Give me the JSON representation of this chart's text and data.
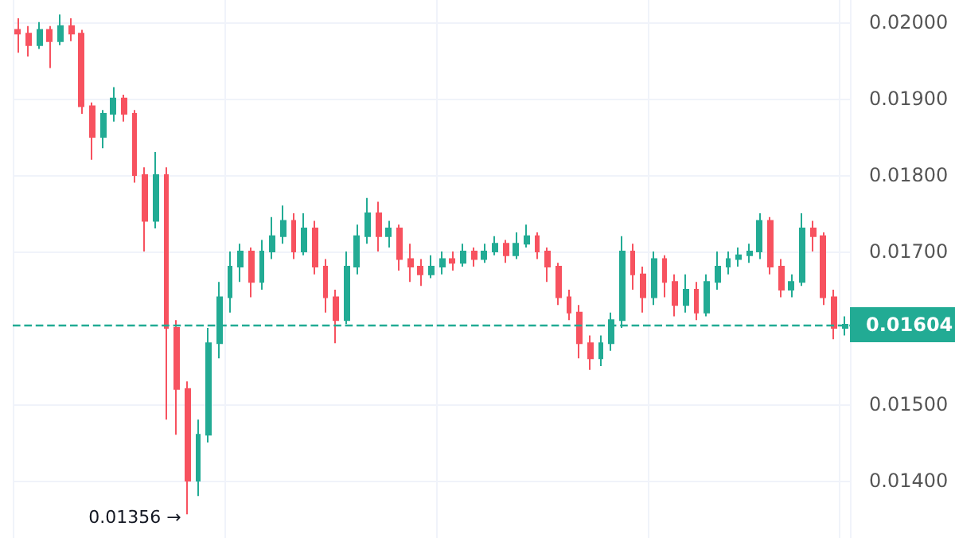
{
  "chart_data": {
    "type": "candlestick",
    "categories": [
      null,
      null,
      null,
      null,
      null,
      null,
      null,
      null,
      null,
      null,
      null,
      null,
      null,
      null,
      null,
      null,
      null,
      null,
      null,
      null,
      null,
      null,
      null,
      null,
      null,
      null,
      null,
      null,
      null,
      null,
      null,
      null,
      null,
      null,
      null,
      null,
      null,
      null,
      null,
      null,
      null,
      null,
      null,
      null,
      null,
      null,
      null,
      null,
      null,
      null,
      null,
      null,
      null,
      null,
      null,
      null,
      null,
      null,
      null,
      null,
      null,
      null,
      null,
      null,
      null,
      null,
      null,
      null,
      null,
      null,
      null,
      null,
      null,
      null,
      null,
      null,
      null,
      null,
      null
    ],
    "colors": [
      "#f7525f",
      "#f7525f",
      "#22ab94",
      "#f7525f",
      "#22ab94",
      "#f7525f",
      "#f7525f",
      "#f7525f",
      "#22ab94",
      "#22ab94",
      "#f7525f",
      "#f7525f",
      "#f7525f",
      "#22ab94",
      "#f7525f",
      "#f7525f",
      "#f7525f",
      "#22ab94",
      "#22ab94",
      "#22ab94",
      "#22ab94",
      "#22ab94",
      "#f7525f",
      "#22ab94",
      "#22ab94",
      "#22ab94",
      "#f7525f",
      "#22ab94",
      "#f7525f",
      "#f7525f",
      "#f7525f",
      "#22ab94",
      "#22ab94",
      "#22ab94",
      "#f7525f",
      "#22ab94",
      "#f7525f",
      "#f7525f",
      "#f7525f",
      "#22ab94",
      "#22ab94",
      "#f7525f",
      "#22ab94",
      "#f7525f",
      "#22ab94",
      "#22ab94",
      "#f7525f",
      "#22ab94",
      "#22ab94",
      "#f7525f",
      "#f7525f",
      "#f7525f",
      "#f7525f",
      "#f7525f",
      "#f7525f",
      "#22ab94",
      "#22ab94",
      "#22ab94",
      "#f7525f",
      "#f7525f",
      "#22ab94",
      "#f7525f",
      "#f7525f",
      "#22ab94",
      "#f7525f",
      "#22ab94",
      "#22ab94",
      "#22ab94",
      "#22ab94",
      "#22ab94",
      "#22ab94",
      "#f7525f",
      "#f7525f",
      "#22ab94",
      "#22ab94",
      "#f7525f",
      "#f7525f",
      "#f7525f",
      "#22ab94"
    ],
    "ohlc": [
      [
        0.0199,
        0.02005,
        0.0196,
        0.01985
      ],
      [
        0.01985,
        0.01995,
        0.01955,
        0.0197
      ],
      [
        0.0197,
        0.02,
        0.01965,
        0.0199
      ],
      [
        0.0199,
        0.01995,
        0.0194,
        0.01975
      ],
      [
        0.01975,
        0.0201,
        0.0197,
        0.01995
      ],
      [
        0.01995,
        0.02005,
        0.01975,
        0.01985
      ],
      [
        0.01985,
        0.0199,
        0.0188,
        0.0189
      ],
      [
        0.0189,
        0.01895,
        0.0182,
        0.0185
      ],
      [
        0.0185,
        0.01885,
        0.01835,
        0.0188
      ],
      [
        0.0188,
        0.01915,
        0.0187,
        0.019
      ],
      [
        0.019,
        0.01905,
        0.0187,
        0.0188
      ],
      [
        0.0188,
        0.01885,
        0.0179,
        0.018
      ],
      [
        0.018,
        0.0181,
        0.017,
        0.0174
      ],
      [
        0.0174,
        0.0183,
        0.0173,
        0.018
      ],
      [
        0.018,
        0.0181,
        0.0148,
        0.016
      ],
      [
        0.016,
        0.0161,
        0.0146,
        0.0152
      ],
      [
        0.0152,
        0.0153,
        0.01356,
        0.014
      ],
      [
        0.014,
        0.0148,
        0.0138,
        0.0146
      ],
      [
        0.0146,
        0.016,
        0.0145,
        0.0158
      ],
      [
        0.0158,
        0.0166,
        0.0156,
        0.0164
      ],
      [
        0.0164,
        0.017,
        0.0162,
        0.0168
      ],
      [
        0.0168,
        0.0171,
        0.0166,
        0.017
      ],
      [
        0.017,
        0.01705,
        0.0164,
        0.0166
      ],
      [
        0.0166,
        0.01715,
        0.0165,
        0.017
      ],
      [
        0.017,
        0.01745,
        0.0169,
        0.0172
      ],
      [
        0.0172,
        0.0176,
        0.0171,
        0.0174
      ],
      [
        0.0174,
        0.0175,
        0.0169,
        0.017
      ],
      [
        0.017,
        0.0175,
        0.01695,
        0.0173
      ],
      [
        0.0173,
        0.0174,
        0.0167,
        0.0168
      ],
      [
        0.0168,
        0.0169,
        0.0162,
        0.0164
      ],
      [
        0.0164,
        0.0165,
        0.0158,
        0.0161
      ],
      [
        0.0161,
        0.017,
        0.01605,
        0.0168
      ],
      [
        0.0168,
        0.01735,
        0.0167,
        0.0172
      ],
      [
        0.0172,
        0.0177,
        0.0171,
        0.0175
      ],
      [
        0.0175,
        0.01765,
        0.017,
        0.0172
      ],
      [
        0.0172,
        0.0174,
        0.01705,
        0.0173
      ],
      [
        0.0173,
        0.01735,
        0.01675,
        0.0169
      ],
      [
        0.0169,
        0.0171,
        0.0166,
        0.0168
      ],
      [
        0.0168,
        0.0169,
        0.01655,
        0.0167
      ],
      [
        0.0167,
        0.01695,
        0.01665,
        0.0168
      ],
      [
        0.0168,
        0.017,
        0.0167,
        0.0169
      ],
      [
        0.0169,
        0.017,
        0.01675,
        0.01685
      ],
      [
        0.01685,
        0.0171,
        0.0168,
        0.017
      ],
      [
        0.017,
        0.01705,
        0.0168,
        0.0169
      ],
      [
        0.0169,
        0.0171,
        0.01685,
        0.017
      ],
      [
        0.017,
        0.0172,
        0.01695,
        0.0171
      ],
      [
        0.0171,
        0.01715,
        0.01685,
        0.01695
      ],
      [
        0.01695,
        0.01725,
        0.0169,
        0.0171
      ],
      [
        0.0171,
        0.01735,
        0.01705,
        0.0172
      ],
      [
        0.0172,
        0.01725,
        0.0169,
        0.017
      ],
      [
        0.017,
        0.01705,
        0.0166,
        0.0168
      ],
      [
        0.0168,
        0.01685,
        0.0163,
        0.0164
      ],
      [
        0.0164,
        0.0165,
        0.0161,
        0.0162
      ],
      [
        0.0162,
        0.0163,
        0.0156,
        0.0158
      ],
      [
        0.0158,
        0.0159,
        0.01545,
        0.0156
      ],
      [
        0.0156,
        0.0159,
        0.0155,
        0.0158
      ],
      [
        0.0158,
        0.0162,
        0.0157,
        0.0161
      ],
      [
        0.0161,
        0.0172,
        0.016,
        0.017
      ],
      [
        0.017,
        0.0171,
        0.0165,
        0.0167
      ],
      [
        0.0167,
        0.0168,
        0.0162,
        0.0164
      ],
      [
        0.0164,
        0.017,
        0.0163,
        0.0169
      ],
      [
        0.0169,
        0.01695,
        0.0164,
        0.0166
      ],
      [
        0.0166,
        0.0167,
        0.01615,
        0.0163
      ],
      [
        0.0163,
        0.0167,
        0.0162,
        0.0165
      ],
      [
        0.0165,
        0.0166,
        0.0161,
        0.0162
      ],
      [
        0.0162,
        0.0167,
        0.01615,
        0.0166
      ],
      [
        0.0166,
        0.017,
        0.0165,
        0.0168
      ],
      [
        0.0168,
        0.017,
        0.0167,
        0.0169
      ],
      [
        0.0169,
        0.01705,
        0.0168,
        0.01695
      ],
      [
        0.01695,
        0.0171,
        0.01685,
        0.017
      ],
      [
        0.017,
        0.0175,
        0.0169,
        0.0174
      ],
      [
        0.0174,
        0.01745,
        0.0167,
        0.0168
      ],
      [
        0.0168,
        0.0169,
        0.0164,
        0.0165
      ],
      [
        0.0165,
        0.0167,
        0.0164,
        0.0166
      ],
      [
        0.0166,
        0.0175,
        0.01655,
        0.0173
      ],
      [
        0.0173,
        0.0174,
        0.017,
        0.0172
      ],
      [
        0.0172,
        0.01725,
        0.0163,
        0.0164
      ],
      [
        0.0164,
        0.0165,
        0.01585,
        0.016
      ],
      [
        0.016,
        0.01615,
        0.0159,
        0.01604
      ]
    ],
    "ylim": [
      0.01325,
      0.02029
    ],
    "yticks": [
      {
        "value": 0.014,
        "label": "0.01400"
      },
      {
        "value": 0.015,
        "label": "0.01500"
      },
      {
        "value": 0.017,
        "label": "0.01700"
      },
      {
        "value": 0.018,
        "label": "0.01800"
      },
      {
        "value": 0.019,
        "label": "0.01900"
      },
      {
        "value": 0.02,
        "label": "0.02000"
      }
    ],
    "ref_lines": [
      {
        "axis": "y",
        "value": 0.01604,
        "label": "0.01604",
        "color": "#22ab94",
        "line_style": "dashed"
      }
    ],
    "annotations": [
      "0.01356 →"
    ],
    "grid": true,
    "tick_labels": "y"
  }
}
